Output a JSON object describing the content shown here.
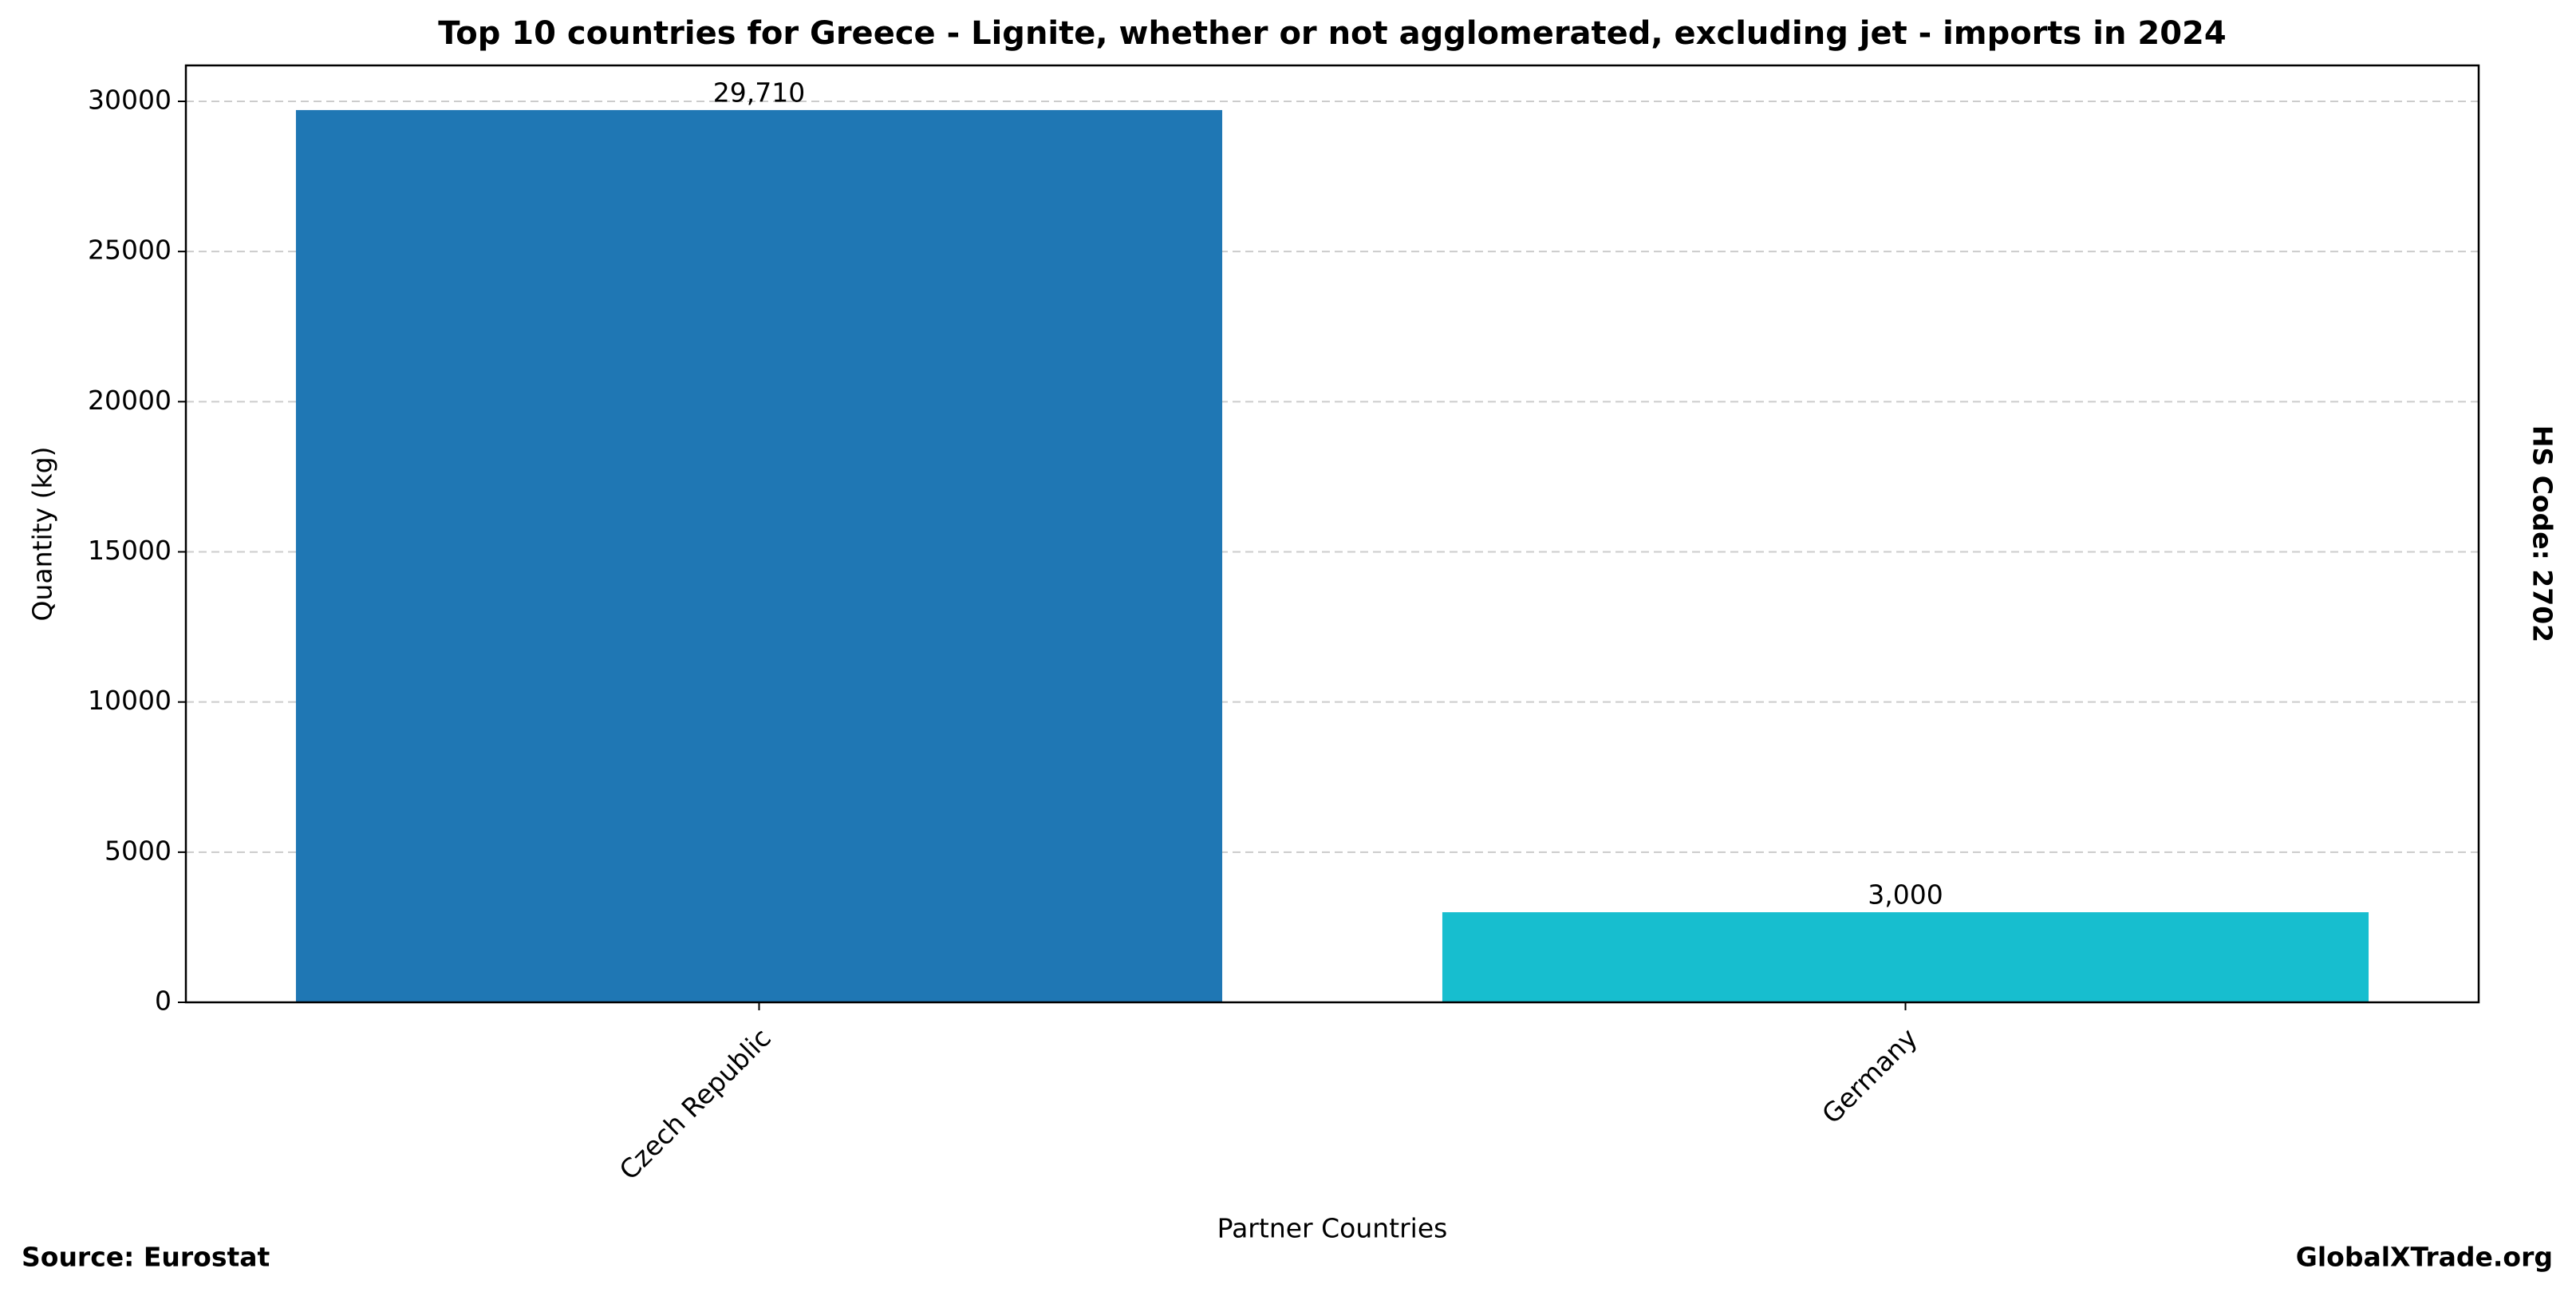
{
  "chart_data": {
    "type": "bar",
    "title": "Top 10 countries for Greece - Lignite, whether or not agglomerated, excluding jet - imports in 2024",
    "x_label": "Partner Countries",
    "y_label": "Quantity (kg)",
    "side_label": "HS Code: 2702",
    "source": "Source: Eurostat",
    "watermark": "GlobalXTrade.org",
    "categories": [
      "Czech Republic",
      "Germany"
    ],
    "values": [
      29710,
      3000
    ],
    "value_labels": [
      "29,710",
      "3,000"
    ],
    "colors": [
      "#1f77b4",
      "#17becf"
    ],
    "ylim": [
      0,
      31195.5
    ],
    "yticks": [
      0,
      5000,
      10000,
      15000,
      20000,
      25000,
      30000
    ],
    "grid": true
  }
}
